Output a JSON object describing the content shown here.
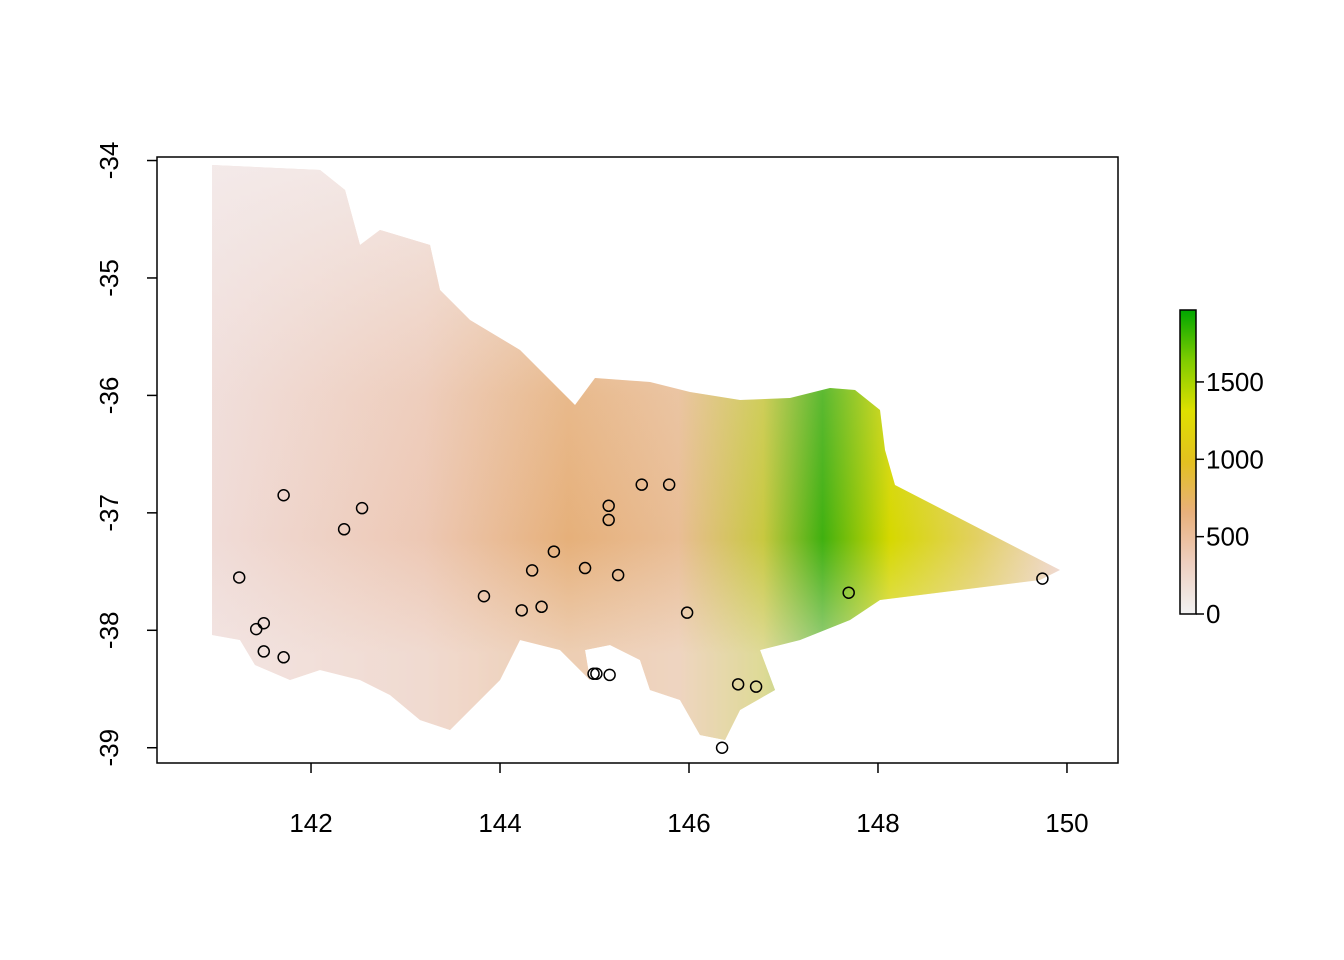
{
  "chart_data": {
    "type": "scatter",
    "x": [
      141.71,
      142.54,
      142.35,
      141.24,
      141.5,
      141.42,
      141.5,
      141.71,
      143.83,
      144.23,
      144.44,
      144.34,
      144.57,
      144.9,
      145.15,
      145.15,
      145.25,
      145.5,
      145.79,
      145.98,
      144.99,
      145.02,
      145.16,
      146.52,
      146.71,
      146.35,
      147.69,
      149.74
    ],
    "values": [
      -36.85,
      -36.96,
      -37.14,
      -37.55,
      -37.94,
      -37.99,
      -38.18,
      -38.23,
      -37.71,
      -37.83,
      -37.8,
      -37.49,
      -37.33,
      -37.47,
      -36.94,
      -37.06,
      -37.53,
      -36.76,
      -36.76,
      -37.85,
      -38.37,
      -38.37,
      -38.38,
      -38.46,
      -38.48,
      -39.0,
      -37.68,
      -37.56
    ],
    "point_color": "#000000",
    "xlim": [
      140.37,
      150.54
    ],
    "ylim": [
      -39.13,
      -33.97
    ],
    "xticks": [
      142,
      144,
      146,
      148,
      150
    ],
    "yticks": [
      -34,
      -35,
      -36,
      -37,
      -38,
      -39
    ],
    "colorbar": {
      "lim": [
        0,
        1965
      ],
      "ticks": [
        0,
        500,
        1000,
        1500
      ],
      "colors": [
        "#f2f2f2",
        "#eecfc0",
        "#e8b07c",
        "#e3c020",
        "#dfe000",
        "#80cc00",
        "#00a600"
      ]
    }
  }
}
